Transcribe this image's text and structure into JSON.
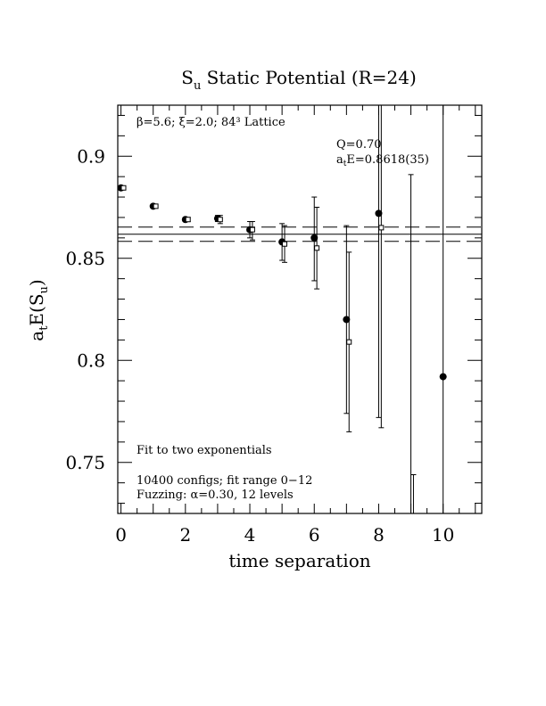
{
  "chart_data": {
    "type": "scatter",
    "title_main": "S",
    "title_sub": "u",
    "title_rest": " Static Potential (R=24)",
    "xlabel": "time separation",
    "ylabel_a": "a",
    "ylabel_t": "t",
    "ylabel_mid": "E(S",
    "ylabel_u": "u",
    "ylabel_end": ")",
    "xlim": [
      -0.1,
      11.2
    ],
    "ylim": [
      0.725,
      0.925
    ],
    "x_ticks": [
      "0",
      "2",
      "4",
      "6",
      "8",
      "10"
    ],
    "y_ticks": [
      "0.75",
      "0.8",
      "0.85",
      "0.9"
    ],
    "header_text": "β=5.6; ξ=2.0; 84³ Lattice",
    "fit_q": "Q=0.70",
    "fit_e_a": "a",
    "fit_e_t": "t",
    "fit_e_rest": "E=0.8618(35)",
    "fit_note": "Fit to two exponentials",
    "configs_note": "10400 configs; fit range 0−12",
    "fuzz_note": "Fuzzing: α=0.30, 12 levels",
    "fit_band": {
      "central": 0.8618,
      "lower": 0.8583,
      "upper": 0.8653,
      "x_from": -0.1,
      "x_to": 11.2
    },
    "series": [
      {
        "marker": "filled-circle",
        "points": [
          {
            "x": 0,
            "y": 0.8845,
            "lo": 0.8845,
            "hi": 0.8845
          },
          {
            "x": 1,
            "y": 0.8755,
            "lo": 0.8755,
            "hi": 0.8755
          },
          {
            "x": 2,
            "y": 0.869,
            "lo": 0.868,
            "hi": 0.87
          },
          {
            "x": 3,
            "y": 0.8695,
            "lo": 0.868,
            "hi": 0.871
          },
          {
            "x": 4,
            "y": 0.864,
            "lo": 0.86,
            "hi": 0.868
          },
          {
            "x": 5,
            "y": 0.858,
            "lo": 0.849,
            "hi": 0.867
          },
          {
            "x": 6,
            "y": 0.86,
            "lo": 0.839,
            "hi": 0.88
          },
          {
            "x": 7,
            "y": 0.82,
            "lo": 0.774,
            "hi": 0.866
          },
          {
            "x": 8,
            "y": 0.872,
            "lo": 0.772,
            "hi": 0.925
          },
          {
            "x": 9,
            "y": null,
            "lo": 0.725,
            "hi": 0.891
          },
          {
            "x": 10,
            "y": 0.792,
            "lo": 0.725,
            "hi": 0.925
          }
        ]
      },
      {
        "marker": "open-square",
        "points": [
          {
            "x": 0,
            "y": 0.8845,
            "lo": 0.8845,
            "hi": 0.8845
          },
          {
            "x": 1,
            "y": 0.8755,
            "lo": 0.8755,
            "hi": 0.8755
          },
          {
            "x": 2,
            "y": 0.869,
            "lo": 0.868,
            "hi": 0.87
          },
          {
            "x": 3,
            "y": 0.869,
            "lo": 0.867,
            "hi": 0.871
          },
          {
            "x": 4,
            "y": 0.864,
            "lo": 0.859,
            "hi": 0.868
          },
          {
            "x": 5,
            "y": 0.857,
            "lo": 0.848,
            "hi": 0.866
          },
          {
            "x": 6,
            "y": 0.855,
            "lo": 0.835,
            "hi": 0.875
          },
          {
            "x": 7,
            "y": 0.809,
            "lo": 0.765,
            "hi": 0.853
          },
          {
            "x": 8,
            "y": 0.865,
            "lo": 0.767,
            "hi": 0.925
          },
          {
            "x": 9,
            "y": null,
            "lo": 0.725,
            "hi": 0.744
          }
        ]
      }
    ]
  }
}
